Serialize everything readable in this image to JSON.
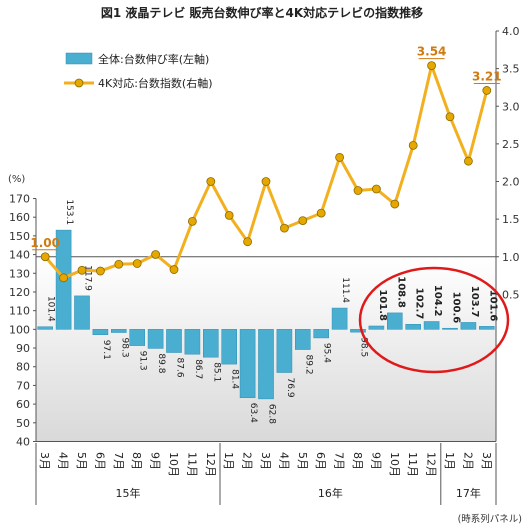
{
  "chart_data": {
    "type": "bar+line",
    "title": "図1 液晶テレビ 販売台数伸び率と4K対応テレビの指数推移",
    "left_unit": "(%)",
    "source": "(時系列パネル)",
    "categories": [
      "3月",
      "4月",
      "5月",
      "6月",
      "7月",
      "8月",
      "9月",
      "10月",
      "11月",
      "12月",
      "1月",
      "2月",
      "3月",
      "4月",
      "5月",
      "6月",
      "7月",
      "8月",
      "9月",
      "10月",
      "11月",
      "12月",
      "1月",
      "2月",
      "3月"
    ],
    "year_groups": [
      {
        "label": "15年",
        "start": 0,
        "end": 9
      },
      {
        "label": "16年",
        "start": 10,
        "end": 21
      },
      {
        "label": "17年",
        "start": 22,
        "end": 24
      }
    ],
    "left_axis": {
      "min": 40,
      "max": 170,
      "ticks": [
        40,
        50,
        60,
        70,
        80,
        90,
        100,
        110,
        120,
        130,
        140,
        150,
        160,
        170
      ]
    },
    "right_axis": {
      "min": 0,
      "max": 4.0,
      "ticks": [
        "0.5",
        "1.0",
        "1.5",
        "2.0",
        "2.5",
        "3.0",
        "3.5",
        "4.0"
      ]
    },
    "series": [
      {
        "name": "全体:台数伸び率(左軸)",
        "type": "bar",
        "axis": "left",
        "values": [
          101.4,
          153.1,
          117.9,
          97.1,
          98.3,
          91.3,
          89.8,
          87.6,
          86.7,
          85.1,
          81.4,
          63.4,
          62.8,
          76.9,
          89.2,
          95.4,
          111.4,
          98.5,
          101.8,
          108.8,
          102.7,
          104.2,
          100.6,
          103.7,
          101.6
        ],
        "labels": [
          "101.4",
          "153.1",
          "117.9",
          "97.1",
          "98.3",
          "91.3",
          "89.8",
          "87.6",
          "86.7",
          "85.1",
          "81.4",
          "63.4",
          "62.8",
          "76.9",
          "89.2",
          "95.4",
          "111.4",
          "98.5",
          "101.8",
          "108.8",
          "102.7",
          "104.2",
          "100.6",
          "103.7",
          "101.6"
        ]
      },
      {
        "name": "4K対応:台数指数(右軸)",
        "type": "line",
        "axis": "right",
        "values": [
          1.0,
          0.72,
          0.82,
          0.81,
          0.9,
          0.91,
          1.03,
          0.83,
          1.47,
          2.0,
          1.55,
          1.2,
          2.0,
          1.38,
          1.48,
          1.58,
          2.32,
          1.88,
          1.9,
          1.7,
          2.48,
          3.54,
          2.86,
          2.27,
          3.21
        ],
        "annotations": [
          {
            "index": 0,
            "label": "1.00"
          },
          {
            "index": 21,
            "label": "3.54"
          },
          {
            "index": 24,
            "label": "3.21"
          }
        ]
      }
    ],
    "colors": {
      "bar": "#4aaed0",
      "bar_edge": "#2f8fb3",
      "line": "#f2b01e",
      "marker": "#e6a800",
      "annotation": "#d07a10",
      "circle": "#e01a1a"
    }
  }
}
